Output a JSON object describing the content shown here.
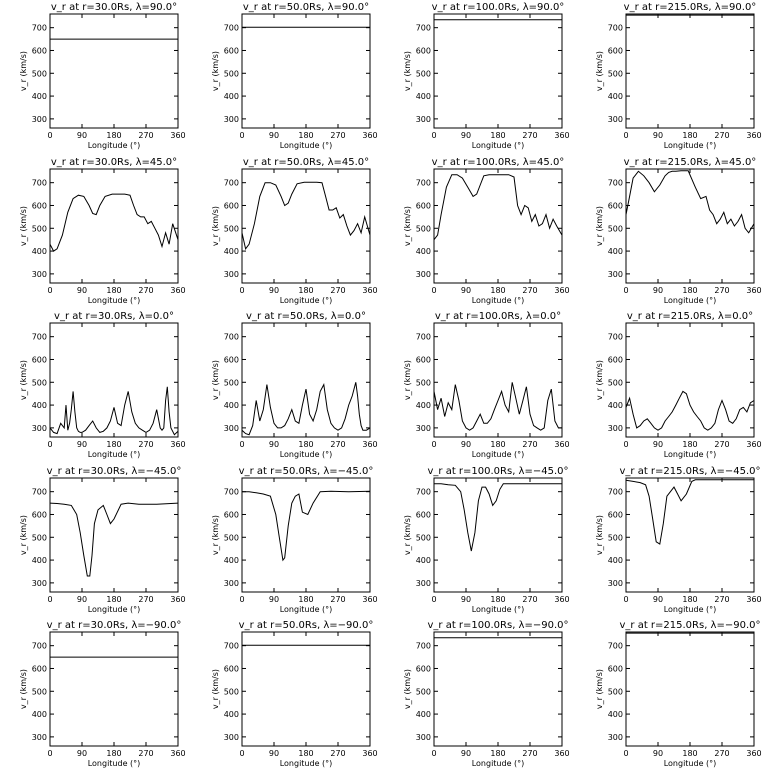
{
  "chart_data": {
    "type": "line",
    "layout": "5x4",
    "shared": {
      "xlabel": "Longitude (°)",
      "ylabel": "v_r (km/s)",
      "xticks": [
        0,
        90,
        180,
        270,
        360
      ],
      "yticks": [
        300,
        400,
        500,
        600,
        700
      ],
      "xlim": [
        0,
        360
      ],
      "ylim": [
        260,
        760
      ]
    },
    "panels": [
      {
        "title": "v_r at r=30.0Rs, λ=90.0°",
        "x": [
          0,
          360
        ],
        "y": [
          650,
          650
        ]
      },
      {
        "title": "v_r at r=50.0Rs, λ=90.0°",
        "x": [
          0,
          360
        ],
        "y": [
          702,
          702
        ]
      },
      {
        "title": "v_r at r=100.0Rs, λ=90.0°",
        "x": [
          0,
          360
        ],
        "y": [
          735,
          735
        ]
      },
      {
        "title": "v_r at r=215.0Rs, λ=90.0°",
        "x": [
          0,
          360
        ],
        "y": [
          755,
          755
        ]
      },
      {
        "title": "v_r at r=30.0Rs, λ=45.0°",
        "x": [
          0,
          10,
          20,
          35,
          50,
          65,
          80,
          95,
          110,
          120,
          130,
          140,
          155,
          175,
          195,
          210,
          225,
          235,
          245,
          255,
          265,
          275,
          285,
          295,
          305,
          315,
          325,
          335,
          345,
          360
        ],
        "y": [
          430,
          400,
          410,
          470,
          570,
          630,
          645,
          640,
          600,
          565,
          560,
          600,
          640,
          650,
          650,
          650,
          645,
          600,
          560,
          550,
          550,
          520,
          530,
          500,
          470,
          420,
          480,
          430,
          520,
          450
        ]
      },
      {
        "title": "v_r at r=50.0Rs, λ=45.0°",
        "x": [
          0,
          10,
          20,
          35,
          50,
          65,
          80,
          95,
          110,
          120,
          130,
          140,
          155,
          175,
          195,
          210,
          225,
          235,
          245,
          255,
          265,
          275,
          285,
          295,
          305,
          315,
          325,
          335,
          345,
          360
        ],
        "y": [
          480,
          410,
          430,
          520,
          640,
          700,
          700,
          690,
          640,
          600,
          610,
          650,
          695,
          702,
          702,
          702,
          700,
          640,
          580,
          580,
          590,
          545,
          560,
          510,
          470,
          490,
          520,
          480,
          550,
          470
        ]
      },
      {
        "title": "v_r at r=100.0Rs, λ=45.0°",
        "x": [
          0,
          10,
          20,
          35,
          50,
          65,
          80,
          95,
          110,
          120,
          130,
          140,
          155,
          175,
          195,
          210,
          225,
          235,
          245,
          255,
          265,
          275,
          285,
          295,
          305,
          315,
          325,
          335,
          345,
          360
        ],
        "y": [
          450,
          470,
          560,
          680,
          735,
          735,
          720,
          680,
          640,
          650,
          690,
          730,
          735,
          735,
          735,
          735,
          725,
          600,
          560,
          600,
          590,
          530,
          560,
          510,
          520,
          560,
          500,
          540,
          510,
          470
        ]
      },
      {
        "title": "v_r at r=215.0Rs, λ=45.0°",
        "x": [
          0,
          10,
          20,
          35,
          50,
          65,
          80,
          95,
          110,
          120,
          130,
          140,
          155,
          175,
          195,
          210,
          225,
          235,
          245,
          255,
          265,
          275,
          285,
          295,
          305,
          315,
          325,
          335,
          345,
          360
        ],
        "y": [
          560,
          640,
          720,
          750,
          730,
          700,
          660,
          690,
          730,
          745,
          750,
          750,
          752,
          752,
          680,
          630,
          640,
          580,
          560,
          520,
          540,
          570,
          520,
          540,
          510,
          530,
          560,
          500,
          480,
          520
        ]
      },
      {
        "title": "v_r at r=30.0Rs, λ=0.0°",
        "x": [
          0,
          10,
          20,
          30,
          40,
          45,
          50,
          55,
          60,
          65,
          70,
          75,
          80,
          85,
          90,
          100,
          110,
          120,
          130,
          140,
          150,
          160,
          170,
          180,
          190,
          200,
          210,
          220,
          230,
          240,
          250,
          260,
          270,
          280,
          290,
          300,
          310,
          315,
          320,
          325,
          330,
          335,
          340,
          350,
          360
        ],
        "y": [
          300,
          280,
          275,
          320,
          300,
          400,
          290,
          320,
          380,
          460,
          370,
          300,
          285,
          280,
          280,
          290,
          310,
          330,
          300,
          280,
          285,
          300,
          330,
          390,
          320,
          310,
          400,
          460,
          370,
          320,
          300,
          290,
          280,
          290,
          320,
          380,
          300,
          290,
          300,
          420,
          480,
          370,
          300,
          270,
          285
        ]
      },
      {
        "title": "v_r at r=50.0Rs, λ=0.0°",
        "x": [
          0,
          10,
          20,
          30,
          40,
          50,
          60,
          70,
          80,
          90,
          100,
          110,
          120,
          130,
          140,
          150,
          160,
          170,
          180,
          190,
          200,
          210,
          220,
          230,
          240,
          250,
          260,
          270,
          280,
          290,
          300,
          310,
          315,
          320,
          325,
          330,
          335,
          340,
          350,
          360
        ],
        "y": [
          290,
          275,
          270,
          310,
          420,
          330,
          380,
          490,
          390,
          320,
          300,
          300,
          310,
          340,
          380,
          330,
          320,
          400,
          470,
          360,
          330,
          380,
          460,
          490,
          380,
          320,
          300,
          290,
          300,
          340,
          400,
          440,
          470,
          500,
          440,
          360,
          310,
          290,
          290,
          300
        ]
      },
      {
        "title": "v_r at r=100.0Rs, λ=0.0°",
        "x": [
          0,
          10,
          20,
          30,
          40,
          50,
          60,
          70,
          80,
          90,
          100,
          110,
          120,
          130,
          140,
          150,
          160,
          170,
          180,
          190,
          200,
          210,
          220,
          230,
          240,
          250,
          260,
          270,
          280,
          290,
          300,
          310,
          320,
          330,
          340,
          350,
          360
        ],
        "y": [
          460,
          380,
          430,
          350,
          410,
          380,
          490,
          420,
          330,
          300,
          290,
          300,
          330,
          360,
          320,
          320,
          340,
          380,
          420,
          460,
          400,
          370,
          500,
          430,
          360,
          420,
          480,
          360,
          310,
          300,
          290,
          300,
          420,
          470,
          330,
          300,
          300
        ]
      },
      {
        "title": "v_r at r=215.0Rs, λ=0.0°",
        "x": [
          0,
          10,
          20,
          30,
          40,
          50,
          60,
          70,
          80,
          90,
          100,
          110,
          120,
          130,
          140,
          150,
          160,
          170,
          180,
          190,
          200,
          210,
          220,
          230,
          240,
          250,
          260,
          270,
          280,
          290,
          300,
          310,
          320,
          330,
          340,
          350,
          360
        ],
        "y": [
          390,
          430,
          360,
          300,
          310,
          330,
          340,
          320,
          300,
          290,
          300,
          330,
          350,
          370,
          400,
          430,
          460,
          450,
          400,
          370,
          350,
          330,
          300,
          290,
          300,
          320,
          380,
          420,
          380,
          330,
          320,
          340,
          380,
          390,
          370,
          410,
          420
        ]
      },
      {
        "title": "v_r at r=30.0Rs, λ=−45.0°",
        "x": [
          0,
          20,
          40,
          60,
          75,
          85,
          95,
          105,
          112,
          118,
          125,
          135,
          150,
          160,
          170,
          180,
          200,
          220,
          250,
          300,
          360
        ],
        "y": [
          650,
          648,
          645,
          640,
          600,
          520,
          420,
          330,
          330,
          420,
          560,
          620,
          640,
          600,
          560,
          580,
          645,
          650,
          645,
          645,
          650
        ]
      },
      {
        "title": "v_r at r=50.0Rs, λ=−45.0°",
        "x": [
          0,
          20,
          40,
          60,
          80,
          95,
          105,
          115,
          120,
          130,
          140,
          150,
          160,
          170,
          185,
          200,
          220,
          250,
          300,
          360
        ],
        "y": [
          700,
          700,
          695,
          690,
          680,
          600,
          500,
          400,
          410,
          550,
          650,
          680,
          690,
          610,
          600,
          650,
          700,
          702,
          700,
          702
        ]
      },
      {
        "title": "v_r at r=100.0Rs, λ=−45.0°",
        "x": [
          0,
          20,
          40,
          60,
          75,
          85,
          95,
          105,
          115,
          125,
          135,
          145,
          155,
          165,
          175,
          185,
          195,
          210,
          250,
          300,
          360
        ],
        "y": [
          735,
          735,
          730,
          728,
          700,
          620,
          520,
          440,
          520,
          660,
          720,
          720,
          690,
          640,
          660,
          710,
          735,
          735,
          735,
          735,
          735
        ]
      },
      {
        "title": "v_r at r=215.0Rs, λ=−45.0°",
        "x": [
          0,
          20,
          40,
          55,
          65,
          75,
          85,
          95,
          105,
          115,
          125,
          135,
          145,
          155,
          170,
          185,
          195,
          210,
          250,
          300,
          360
        ],
        "y": [
          750,
          745,
          740,
          730,
          680,
          580,
          480,
          470,
          560,
          680,
          700,
          720,
          690,
          660,
          690,
          745,
          752,
          752,
          752,
          752,
          752
        ]
      },
      {
        "title": "v_r at r=30.0Rs, λ=−90.0°",
        "x": [
          0,
          360
        ],
        "y": [
          650,
          650
        ]
      },
      {
        "title": "v_r at r=50.0Rs, λ=−90.0°",
        "x": [
          0,
          360
        ],
        "y": [
          702,
          702
        ]
      },
      {
        "title": "v_r at r=100.0Rs, λ=−90.0°",
        "x": [
          0,
          360
        ],
        "y": [
          735,
          735
        ]
      },
      {
        "title": "v_r at r=215.0Rs, λ=−90.0°",
        "x": [
          0,
          360
        ],
        "y": [
          755,
          755
        ]
      }
    ]
  }
}
